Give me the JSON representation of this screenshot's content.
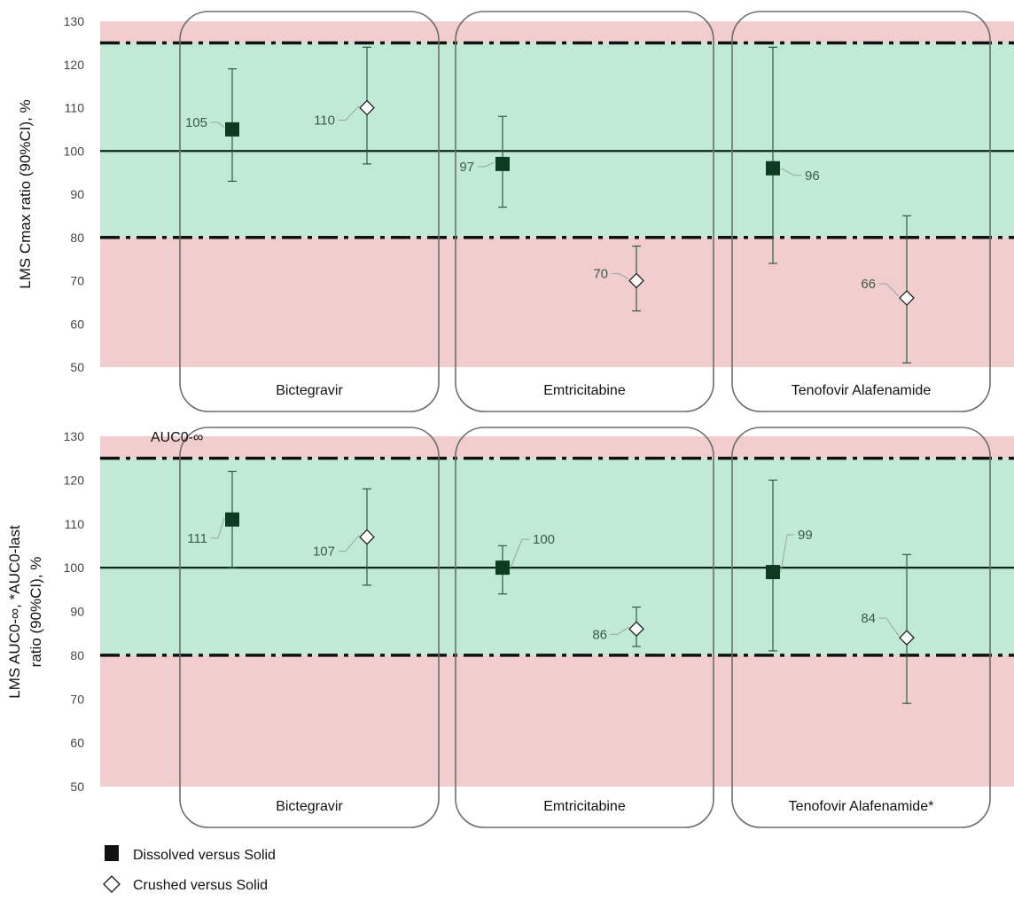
{
  "chart_data": [
    {
      "type": "scatter",
      "panel": "top",
      "title": "",
      "ylabel": "LMS Cmax ratio (90%CI), %",
      "ylim": [
        50,
        130
      ],
      "yticks": [
        50,
        60,
        70,
        80,
        90,
        100,
        110,
        120,
        130
      ],
      "reference_line": 100,
      "bioequivalence_limits": [
        80,
        125
      ],
      "grid": false,
      "categories": [
        "Bictegravir",
        "Emtricitabine",
        "Tenofovir Alafenamide"
      ],
      "series": [
        {
          "name": "Dissolved versus Solid",
          "marker": "square",
          "points": [
            {
              "category": "Bictegravir",
              "value": 105,
              "ci_low": 93,
              "ci_high": 119,
              "label": "105"
            },
            {
              "category": "Emtricitabine",
              "value": 97,
              "ci_low": 87,
              "ci_high": 108,
              "label": "97"
            },
            {
              "category": "Tenofovir Alafenamide",
              "value": 96,
              "ci_low": 74,
              "ci_high": 124,
              "label": "96"
            }
          ]
        },
        {
          "name": "Crushed versus Solid",
          "marker": "diamond",
          "points": [
            {
              "category": "Bictegravir",
              "value": 110,
              "ci_low": 97,
              "ci_high": 124,
              "label": "110"
            },
            {
              "category": "Emtricitabine",
              "value": 70,
              "ci_low": 63,
              "ci_high": 78,
              "label": "70"
            },
            {
              "category": "Tenofovir Alafenamide",
              "value": 66,
              "ci_low": 51,
              "ci_high": 85,
              "label": "66"
            }
          ]
        }
      ]
    },
    {
      "type": "scatter",
      "panel": "bottom",
      "title": "AUC0-∞",
      "ylabel_line1": "LMS  AUC0-∞, *AUC0-last",
      "ylabel_line2": "ratio (90%CI), %",
      "ylim": [
        50,
        130
      ],
      "yticks": [
        50,
        60,
        70,
        80,
        90,
        100,
        110,
        120,
        130
      ],
      "reference_line": 100,
      "bioequivalence_limits": [
        80,
        125
      ],
      "grid": false,
      "categories": [
        "Bictegravir",
        "Emtricitabine",
        "Tenofovir Alafenamide*"
      ],
      "series": [
        {
          "name": "Dissolved versus Solid",
          "marker": "square",
          "points": [
            {
              "category": "Bictegravir",
              "value": 111,
              "ci_low": 100,
              "ci_high": 122,
              "label": "111"
            },
            {
              "category": "Emtricitabine",
              "value": 100,
              "ci_low": 94,
              "ci_high": 105,
              "label": "100"
            },
            {
              "category": "Tenofovir Alafenamide*",
              "value": 99,
              "ci_low": 81,
              "ci_high": 120,
              "label": "99"
            }
          ]
        },
        {
          "name": "Crushed versus Solid",
          "marker": "diamond",
          "points": [
            {
              "category": "Bictegravir",
              "value": 107,
              "ci_low": 96,
              "ci_high": 118,
              "label": "107"
            },
            {
              "category": "Emtricitabine",
              "value": 86,
              "ci_low": 82,
              "ci_high": 91,
              "label": "86"
            },
            {
              "category": "Tenofovir Alafenamide*",
              "value": 84,
              "ci_low": 69,
              "ci_high": 103,
              "label": "84"
            }
          ]
        }
      ]
    }
  ],
  "legend": {
    "placement": "bottom-left",
    "items": [
      {
        "label": "Dissolved versus Solid",
        "marker": "square"
      },
      {
        "label": "Crushed versus Solid",
        "marker": "diamond"
      }
    ]
  },
  "colors": {
    "pass_zone": "#c0ead6",
    "fail_zone": "#f2cdcd",
    "marker": "#0d3b22",
    "whisker": "#2f5a40",
    "label_text": "#3d5a47",
    "reference_line": "#0a2a18",
    "limit_line": "#111111",
    "box_border": "#6e6e6e",
    "axis_text": "#444444"
  }
}
